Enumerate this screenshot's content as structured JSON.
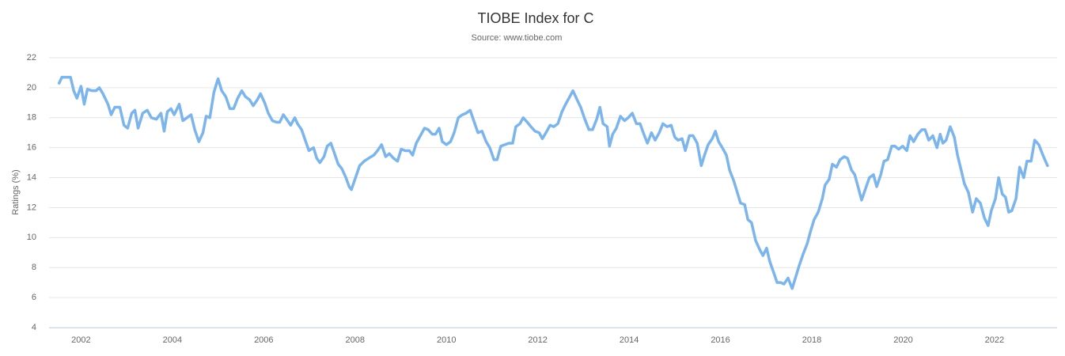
{
  "chart_data": {
    "type": "line",
    "title": "TIOBE Index for C",
    "subtitle": "Source: www.tiobe.com",
    "y_label": "Ratings (%)",
    "color": "#7cb5ec",
    "grid": true,
    "xlim": [
      2001.3,
      2023.37
    ],
    "xticks": [
      2002,
      2004,
      2006,
      2008,
      2010,
      2012,
      2014,
      2016,
      2018,
      2020,
      2022
    ],
    "ylim": [
      4,
      22
    ],
    "yticks": [
      4,
      6,
      8,
      10,
      12,
      14,
      16,
      18,
      20,
      22
    ],
    "x": [
      2001.52,
      2001.58,
      2001.69,
      2001.77,
      2001.84,
      2001.91,
      2002.0,
      2002.07,
      2002.14,
      2002.24,
      2002.33,
      2002.4,
      2002.48,
      2002.59,
      2002.66,
      2002.74,
      2002.85,
      2002.94,
      2003.02,
      2003.11,
      2003.18,
      2003.25,
      2003.35,
      2003.45,
      2003.54,
      2003.65,
      2003.75,
      2003.82,
      2003.89,
      2003.97,
      2004.04,
      2004.15,
      2004.23,
      2004.32,
      2004.41,
      2004.49,
      2004.58,
      2004.67,
      2004.74,
      2004.82,
      2004.91,
      2005.0,
      2005.08,
      2005.17,
      2005.26,
      2005.34,
      2005.43,
      2005.52,
      2005.6,
      2005.69,
      2005.77,
      2005.86,
      2005.93,
      2006.02,
      2006.1,
      2006.19,
      2006.28,
      2006.35,
      2006.43,
      2006.5,
      2006.59,
      2006.68,
      2006.74,
      2006.83,
      2006.92,
      2006.99,
      2007.09,
      2007.16,
      2007.23,
      2007.32,
      2007.39,
      2007.47,
      2007.54,
      2007.63,
      2007.71,
      2007.8,
      2007.87,
      2007.92,
      2008.01,
      2008.1,
      2008.2,
      2008.3,
      2008.41,
      2008.49,
      2008.58,
      2008.67,
      2008.75,
      2008.84,
      2008.93,
      2009.01,
      2009.1,
      2009.19,
      2009.26,
      2009.34,
      2009.43,
      2009.52,
      2009.6,
      2009.69,
      2009.76,
      2009.84,
      2009.91,
      2010.0,
      2010.09,
      2010.17,
      2010.26,
      2010.35,
      2010.43,
      2010.52,
      2010.61,
      2010.69,
      2010.78,
      2010.87,
      2010.95,
      2011.04,
      2011.11,
      2011.19,
      2011.28,
      2011.37,
      2011.45,
      2011.52,
      2011.61,
      2011.68,
      2011.77,
      2011.85,
      2011.94,
      2012.03,
      2012.1,
      2012.18,
      2012.27,
      2012.35,
      2012.44,
      2012.53,
      2012.61,
      2012.7,
      2012.77,
      2012.86,
      2012.94,
      2013.03,
      2013.12,
      2013.2,
      2013.29,
      2013.36,
      2013.43,
      2013.52,
      2013.57,
      2013.64,
      2013.72,
      2013.81,
      2013.9,
      2013.98,
      2014.07,
      2014.16,
      2014.24,
      2014.31,
      2014.4,
      2014.49,
      2014.57,
      2014.66,
      2014.74,
      2014.83,
      2014.92,
      2015.0,
      2015.07,
      2015.16,
      2015.23,
      2015.32,
      2015.4,
      2015.49,
      2015.58,
      2015.65,
      2015.73,
      2015.82,
      2015.89,
      2015.96,
      2016.04,
      2016.13,
      2016.2,
      2016.29,
      2016.37,
      2016.44,
      2016.53,
      2016.6,
      2016.68,
      2016.77,
      2016.86,
      2016.93,
      2017.01,
      2017.08,
      2017.15,
      2017.24,
      2017.32,
      2017.39,
      2017.48,
      2017.57,
      2017.64,
      2017.72,
      2017.81,
      2017.9,
      2017.97,
      2018.05,
      2018.14,
      2018.23,
      2018.29,
      2018.38,
      2018.45,
      2018.54,
      2018.62,
      2018.71,
      2018.78,
      2018.87,
      2018.94,
      2019.02,
      2019.09,
      2019.18,
      2019.26,
      2019.35,
      2019.42,
      2019.51,
      2019.58,
      2019.66,
      2019.75,
      2019.82,
      2019.9,
      2019.99,
      2020.08,
      2020.15,
      2020.23,
      2020.32,
      2020.41,
      2020.48,
      2020.56,
      2020.65,
      2020.74,
      2020.81,
      2020.87,
      2020.94,
      2021.03,
      2021.12,
      2021.19,
      2021.27,
      2021.34,
      2021.43,
      2021.52,
      2021.6,
      2021.69,
      2021.78,
      2021.86,
      2021.93,
      2022.02,
      2022.09,
      2022.17,
      2022.24,
      2022.31,
      2022.38,
      2022.47,
      2022.55,
      2022.64,
      2022.71,
      2022.8,
      2022.88,
      2022.97,
      2023.06,
      2023.16
    ],
    "values": [
      20.3,
      20.7,
      20.7,
      20.7,
      19.8,
      19.3,
      20.1,
      18.9,
      19.9,
      19.8,
      19.8,
      20.0,
      19.6,
      18.9,
      18.2,
      18.7,
      18.7,
      17.5,
      17.3,
      18.3,
      18.5,
      17.3,
      18.3,
      18.5,
      18.0,
      17.9,
      18.3,
      17.1,
      18.4,
      18.6,
      18.2,
      18.9,
      17.8,
      18.0,
      18.2,
      17.2,
      16.4,
      17.0,
      18.1,
      18.0,
      19.7,
      20.6,
      19.8,
      19.4,
      18.6,
      18.6,
      19.3,
      19.8,
      19.4,
      19.2,
      18.8,
      19.2,
      19.6,
      19.0,
      18.3,
      17.8,
      17.7,
      17.7,
      18.2,
      17.9,
      17.5,
      18.0,
      17.6,
      17.2,
      16.4,
      15.8,
      16.0,
      15.3,
      15.0,
      15.4,
      16.1,
      16.3,
      15.7,
      14.9,
      14.6,
      14.0,
      13.4,
      13.2,
      14.0,
      14.8,
      15.1,
      15.3,
      15.5,
      15.8,
      16.2,
      15.4,
      15.6,
      15.3,
      15.1,
      15.9,
      15.8,
      15.8,
      15.5,
      16.3,
      16.8,
      17.3,
      17.2,
      16.9,
      16.9,
      17.3,
      16.4,
      16.2,
      16.4,
      17.0,
      18.0,
      18.2,
      18.3,
      18.5,
      17.7,
      17.0,
      17.1,
      16.4,
      16.0,
      15.2,
      15.2,
      16.1,
      16.2,
      16.3,
      16.3,
      17.4,
      17.6,
      18.0,
      17.7,
      17.4,
      17.1,
      17.0,
      16.6,
      17.0,
      17.5,
      17.4,
      17.6,
      18.4,
      18.9,
      19.4,
      19.8,
      19.2,
      18.7,
      17.9,
      17.2,
      17.2,
      17.9,
      18.7,
      17.6,
      17.4,
      16.1,
      16.9,
      17.3,
      18.1,
      17.8,
      18.0,
      18.3,
      17.6,
      17.6,
      17.0,
      16.3,
      17.0,
      16.5,
      17.0,
      17.6,
      17.4,
      17.5,
      16.7,
      16.5,
      16.6,
      15.8,
      16.8,
      16.8,
      16.3,
      14.8,
      15.5,
      16.2,
      16.6,
      17.1,
      16.4,
      16.0,
      15.5,
      14.5,
      13.8,
      13.0,
      12.3,
      12.2,
      11.2,
      11.0,
      9.8,
      9.2,
      8.8,
      9.3,
      8.4,
      7.8,
      7.0,
      7.0,
      6.9,
      7.3,
      6.6,
      7.3,
      8.1,
      8.9,
      9.6,
      10.4,
      11.2,
      11.7,
      12.6,
      13.5,
      13.9,
      14.9,
      14.7,
      15.2,
      15.4,
      15.3,
      14.5,
      14.2,
      13.3,
      12.5,
      13.3,
      14.0,
      14.2,
      13.4,
      14.2,
      15.1,
      15.2,
      16.1,
      16.1,
      15.9,
      16.1,
      15.8,
      16.8,
      16.4,
      16.9,
      17.2,
      17.2,
      16.5,
      16.8,
      16.0,
      16.9,
      16.3,
      16.5,
      17.4,
      16.7,
      15.5,
      14.5,
      13.6,
      13.0,
      11.7,
      12.6,
      12.3,
      11.3,
      10.8,
      11.8,
      12.6,
      14.0,
      12.9,
      12.7,
      11.7,
      11.8,
      12.6,
      14.7,
      14.0,
      15.1,
      15.1,
      16.5,
      16.2,
      15.5,
      14.8
    ]
  }
}
